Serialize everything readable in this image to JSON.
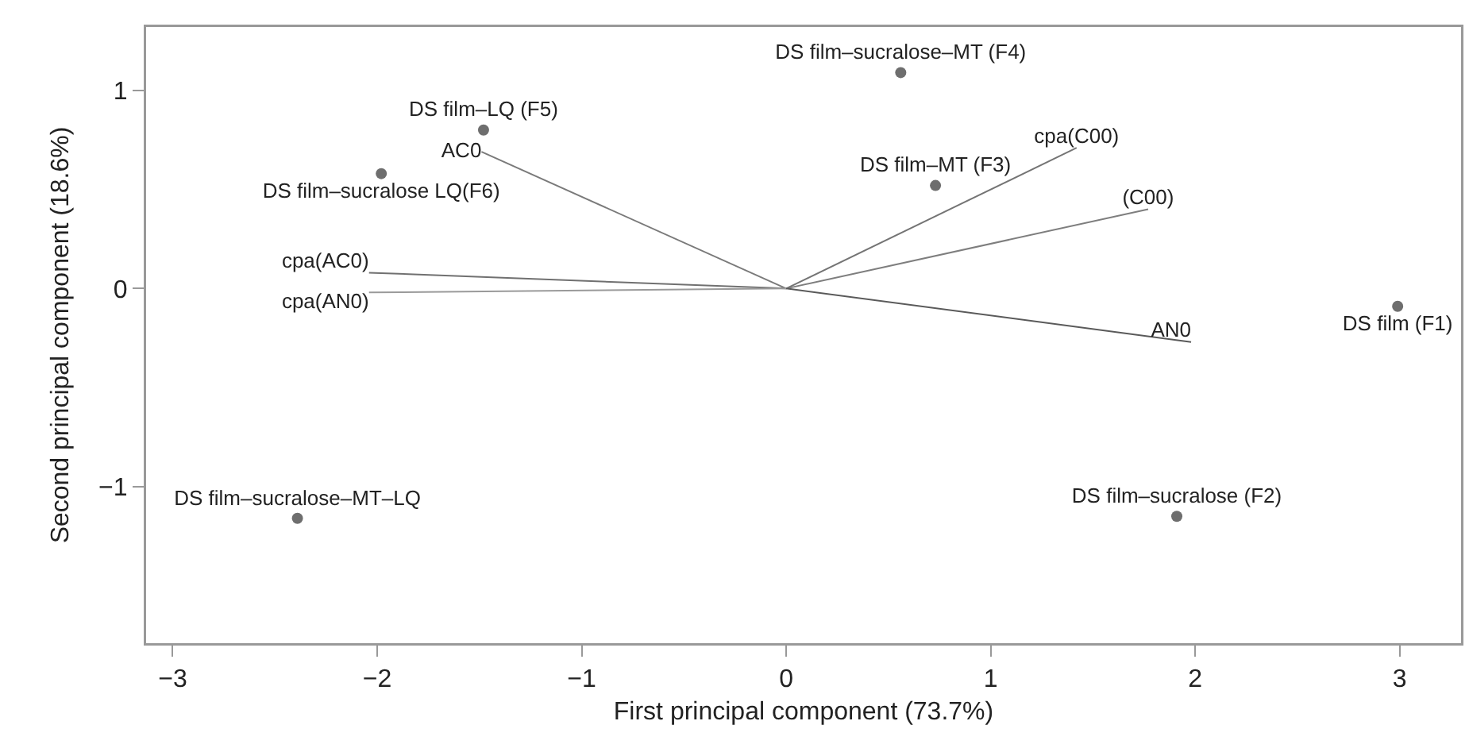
{
  "chart_data": {
    "type": "scatter",
    "xlabel": "First principal component (73.7%)",
    "ylabel": "Second principal component (18.6%)",
    "xlim": [
      -3.13,
      3.3
    ],
    "ylim": [
      -1.79,
      1.32
    ],
    "xticks": [
      -3,
      -2,
      -1,
      0,
      1,
      2,
      3
    ],
    "yticks": [
      -1,
      0,
      1
    ],
    "line_style": "solid",
    "series": [
      {
        "name": "DS film (F1)",
        "marker": "circle",
        "color": "#6e6e6e",
        "x": [
          2.99
        ],
        "values": [
          -0.09
        ]
      },
      {
        "name": "DS film–sucralose (F2)",
        "marker": "circle",
        "color": "#6e6e6e",
        "x": [
          1.91
        ],
        "values": [
          -1.15
        ]
      },
      {
        "name": "DS film–MT (F3)",
        "marker": "circle",
        "color": "#6e6e6e",
        "x": [
          0.73
        ],
        "values": [
          0.52
        ]
      },
      {
        "name": "DS film–sucralose–MT (F4)",
        "marker": "circle",
        "color": "#6e6e6e",
        "x": [
          0.56
        ],
        "values": [
          1.09
        ]
      },
      {
        "name": "DS film–LQ (F5)",
        "marker": "circle",
        "color": "#6e6e6e",
        "x": [
          -1.48
        ],
        "values": [
          0.8
        ]
      },
      {
        "name": "DS film–sucralose LQ(F6)",
        "marker": "circle",
        "color": "#6e6e6e",
        "x": [
          -1.98
        ],
        "values": [
          0.58
        ]
      },
      {
        "name": "DS film–sucralose–MT–LQ",
        "marker": "circle",
        "color": "#6e6e6e",
        "x": [
          -2.39
        ],
        "values": [
          -1.16
        ]
      },
      {
        "name": "AC0",
        "type": "line",
        "marker": "none",
        "color": "#7a7a7a",
        "x": [
          0,
          -1.49
        ],
        "values": [
          0,
          0.69
        ]
      },
      {
        "name": "cpa(AC0)",
        "type": "line",
        "marker": "none",
        "color": "#707070",
        "x": [
          0,
          -2.04
        ],
        "values": [
          0,
          0.08
        ]
      },
      {
        "name": "cpa(AN0)",
        "type": "line",
        "marker": "none",
        "color": "#9a9a9a",
        "x": [
          0,
          -2.04
        ],
        "values": [
          0,
          -0.02
        ]
      },
      {
        "name": "cpa(C00)",
        "type": "line",
        "marker": "none",
        "color": "#747474",
        "x": [
          0,
          1.42
        ],
        "values": [
          0,
          0.71
        ]
      },
      {
        "name": "(C00)",
        "type": "line",
        "marker": "none",
        "color": "#7e7e7e",
        "x": [
          0,
          1.77
        ],
        "values": [
          0,
          0.4
        ]
      },
      {
        "name": "AN0",
        "type": "line",
        "marker": "none",
        "color": "#5a5a5a",
        "x": [
          0,
          1.98
        ],
        "values": [
          0,
          -0.27
        ]
      }
    ]
  }
}
